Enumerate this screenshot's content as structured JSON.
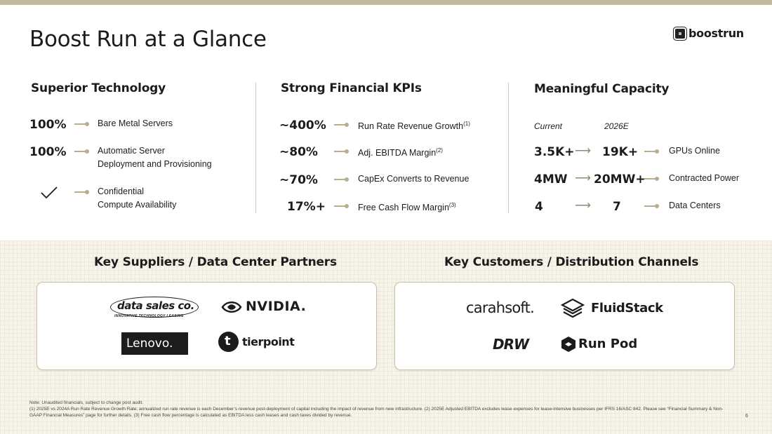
{
  "header": {
    "title": "Boost Run at a Glance",
    "logo_text": "boostrun"
  },
  "technology": {
    "heading": "Superior Technology",
    "items": [
      {
        "value": "100%",
        "label": "Bare Metal Servers"
      },
      {
        "value": "100%",
        "label_line1": "Automatic Server",
        "label_line2": "Deployment and Provisioning"
      },
      {
        "value_icon": "checkmark-icon",
        "label_line1": "Confidential",
        "label_line2": "Compute Availability"
      }
    ]
  },
  "financials": {
    "heading": "Strong Financial KPIs",
    "items": [
      {
        "value": "~400%",
        "label": "Run Rate Revenue Growth",
        "sup": "(1)"
      },
      {
        "value": "~80%",
        "label": "Adj. EBITDA Margin",
        "sup": "(2)"
      },
      {
        "value": "~70%",
        "label": "CapEx Converts to Revenue",
        "sup": ""
      },
      {
        "value": "17%+",
        "label": "Free Cash Flow Margin",
        "sup": "(3)"
      }
    ]
  },
  "capacity": {
    "heading": "Meaningful Capacity",
    "col_current": "Current",
    "col_2026e": "2026E",
    "rows": [
      {
        "current": "3.5K+",
        "future": "19K+",
        "label": "GPUs Online"
      },
      {
        "current": "4MW",
        "future": "20MW+",
        "label": "Contracted Power"
      },
      {
        "current": "4",
        "future": "7",
        "label": "Data Centers"
      }
    ]
  },
  "suppliers": {
    "heading": "Key Suppliers / Data Center Partners",
    "logos": [
      "data sales co.",
      "INNOVATIVE TECHNOLOGY LEASING",
      "NVIDIA.",
      "Lenovo.",
      "tierpoint"
    ]
  },
  "customers": {
    "heading": "Key Customers / Distribution Channels",
    "logos": [
      "carahsoft.",
      "FluidStack",
      "DRW",
      "Run",
      "Pod"
    ]
  },
  "footer": {
    "note1": "Note: Unaudited financials, subject to change post audit.",
    "note2": "(1) 2025E vs 2024A Run Rate Revenue Growth Rate; annualized run rate revenue is each December’s revenue post-deployment of capital including the impact of revenue from new infrastructure. (2) 2025E Adjusted EBITDA excludes lease expenses for lease-intensive businesses per IFRS 16/ASC 842. Please see “Financial Summary & Non-GAAP Financial Measures” page for further details. (3) Free cash flow percentage is calculated as EBITDA less cash leases and cash taxes divided by revenue.",
    "page": "6"
  },
  "colors": {
    "accent": "#c2b99a",
    "band": "#f7f4ec",
    "connector": "#b8ae8e"
  }
}
